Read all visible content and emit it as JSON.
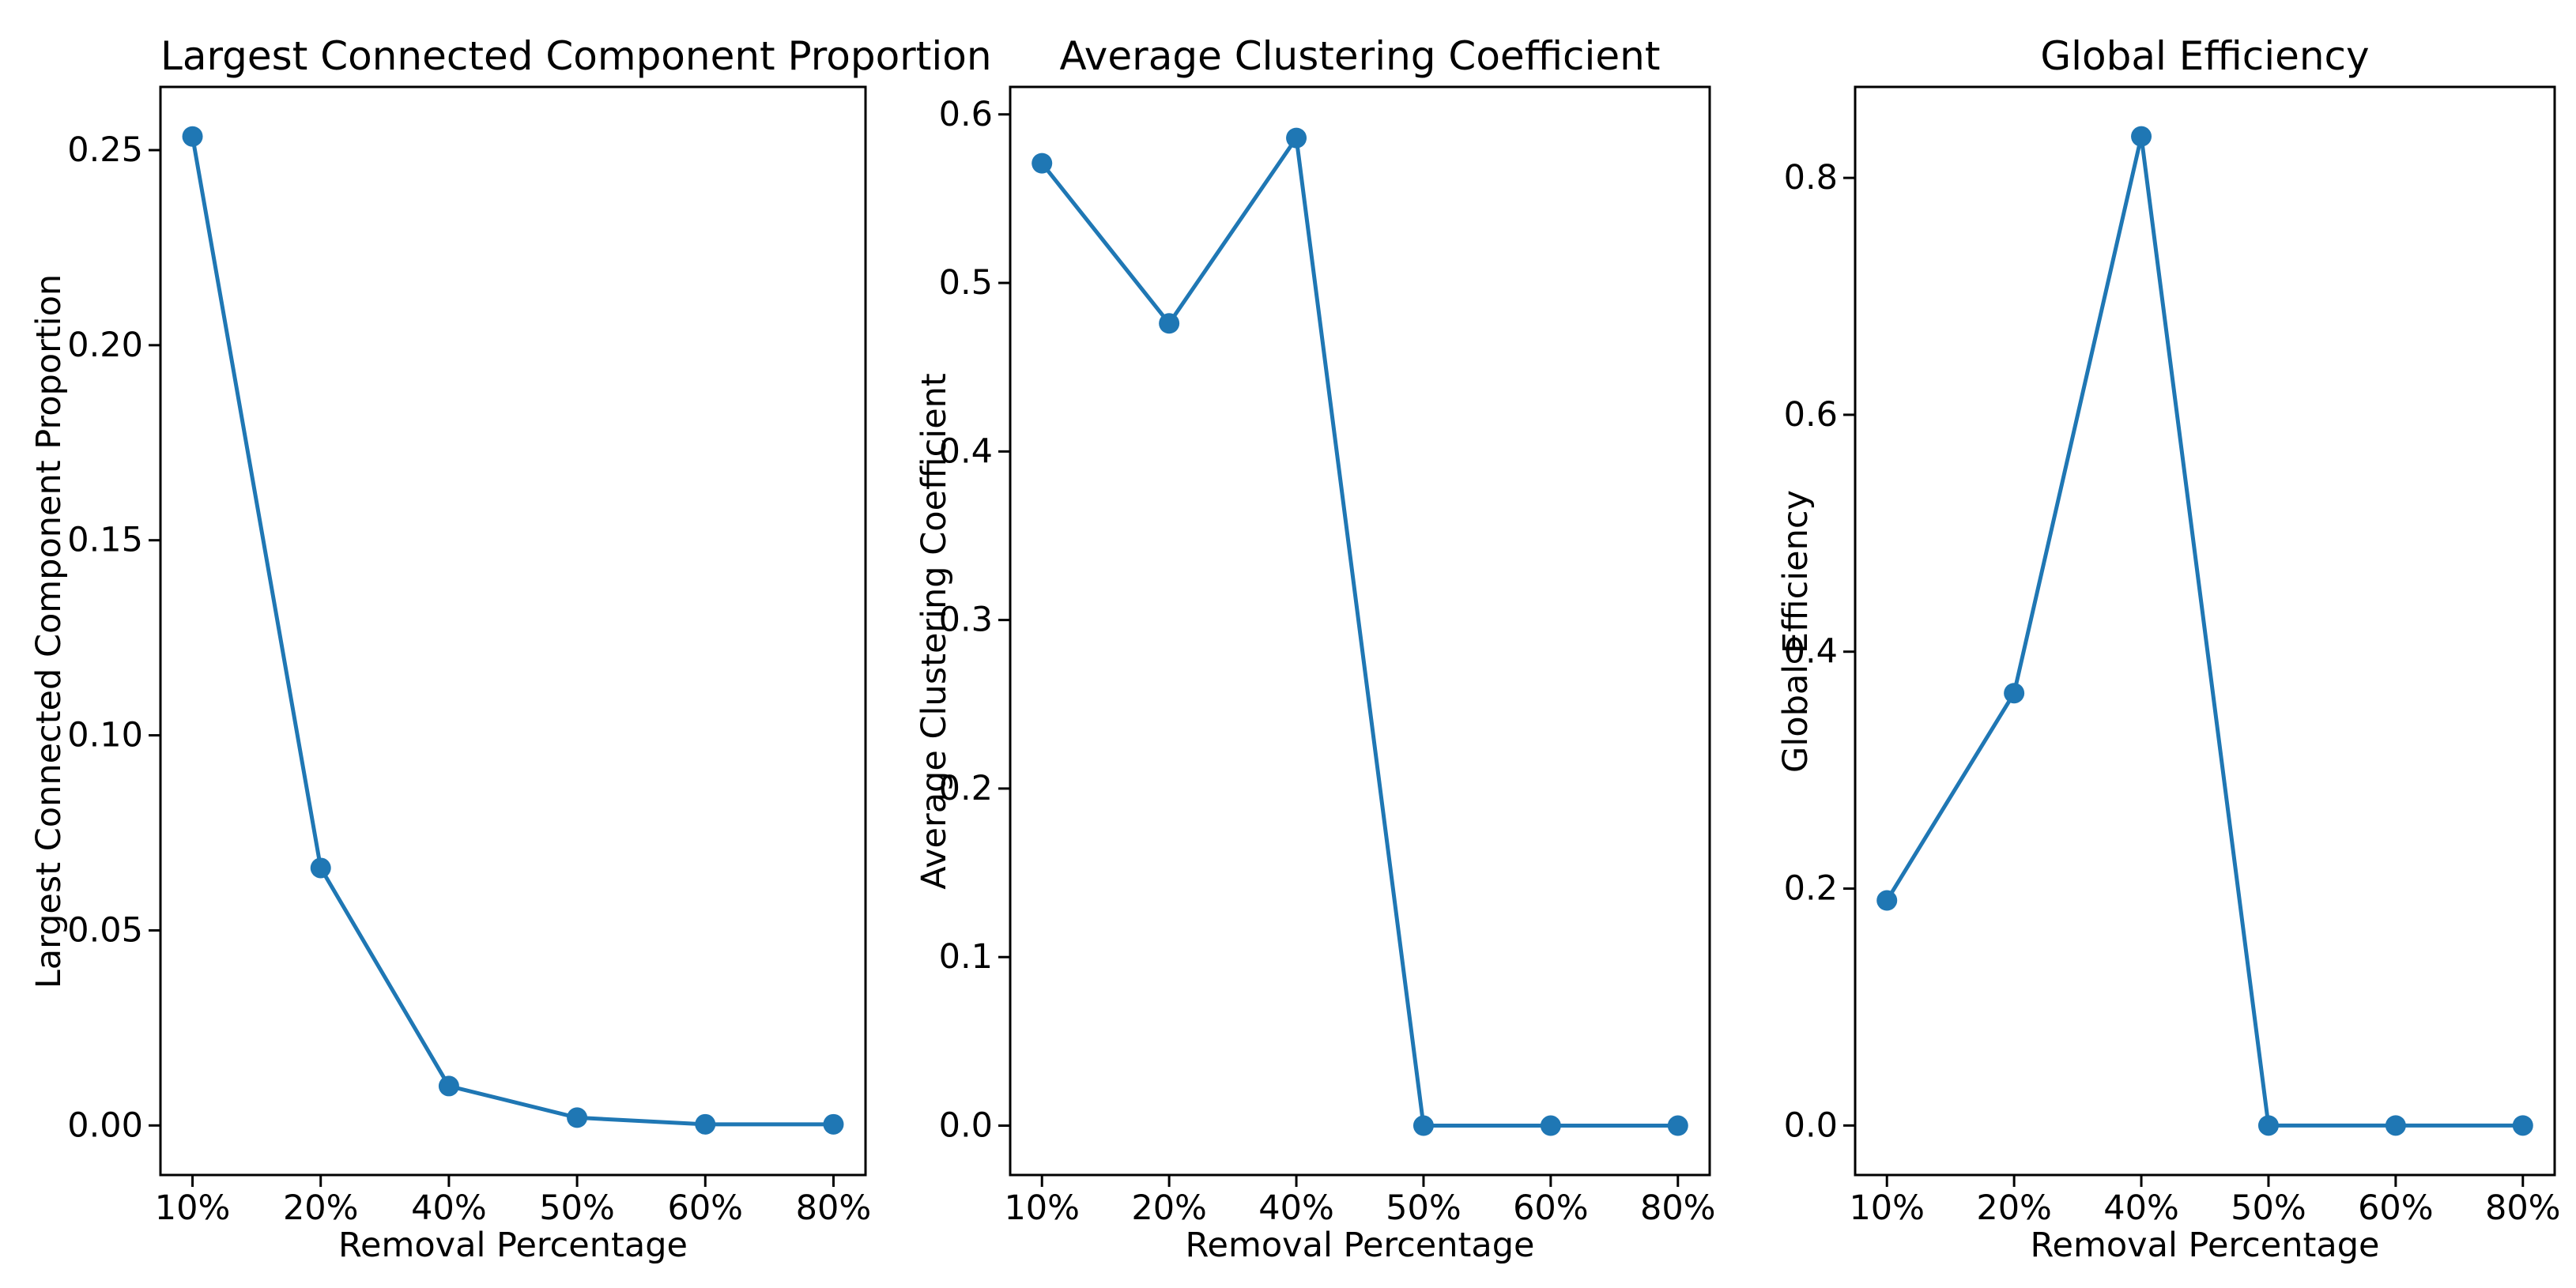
{
  "figure": {
    "background_color": "#ffffff",
    "text_color": "#000000",
    "accent_color": "#1f77b4"
  },
  "chart_data": [
    {
      "type": "line",
      "title": "Largest Connected Component Proportion",
      "xlabel": "Removal Percentage",
      "ylabel": "Largest Connected Component Proportion",
      "categories": [
        "10%",
        "20%",
        "40%",
        "50%",
        "60%",
        "80%"
      ],
      "values": [
        0.2535,
        0.066,
        0.0101,
        0.002,
        0.0003,
        0.0003
      ],
      "xlim": [
        -0.25,
        5.25
      ],
      "ylim": [
        -0.0127,
        0.2662
      ],
      "yticks": [
        0.0,
        0.05,
        0.1,
        0.15,
        0.2,
        0.25
      ],
      "ytick_labels": [
        "0.00",
        "0.05",
        "0.10",
        "0.15",
        "0.20",
        "0.25"
      ],
      "grid": false,
      "legend": null,
      "marker": "o",
      "line_color": "#1f77b4"
    },
    {
      "type": "line",
      "title": "Average Clustering Coefficient",
      "xlabel": "Removal Percentage",
      "ylabel": "Average Clustering Coefficient",
      "categories": [
        "10%",
        "20%",
        "40%",
        "50%",
        "60%",
        "80%"
      ],
      "values": [
        0.571,
        0.476,
        0.586,
        0.0,
        0.0,
        0.0
      ],
      "xlim": [
        -0.25,
        5.25
      ],
      "ylim": [
        -0.0293,
        0.6163
      ],
      "yticks": [
        0.0,
        0.1,
        0.2,
        0.3,
        0.4,
        0.5,
        0.6
      ],
      "ytick_labels": [
        "0.0",
        "0.1",
        "0.2",
        "0.3",
        "0.4",
        "0.5",
        "0.6"
      ],
      "grid": false,
      "legend": null,
      "marker": "o",
      "line_color": "#1f77b4"
    },
    {
      "type": "line",
      "title": "Global Efficiency",
      "xlabel": "Removal Percentage",
      "ylabel": "Global Efficiency",
      "categories": [
        "10%",
        "20%",
        "40%",
        "50%",
        "60%",
        "80%"
      ],
      "values": [
        0.19,
        0.365,
        0.835,
        0.0,
        0.0,
        0.0
      ],
      "xlim": [
        -0.25,
        5.25
      ],
      "ylim": [
        -0.0418,
        0.8768
      ],
      "yticks": [
        0.0,
        0.2,
        0.4,
        0.6,
        0.8
      ],
      "ytick_labels": [
        "0.0",
        "0.2",
        "0.4",
        "0.6",
        "0.8"
      ],
      "grid": false,
      "legend": null,
      "marker": "o",
      "line_color": "#1f77b4"
    }
  ]
}
